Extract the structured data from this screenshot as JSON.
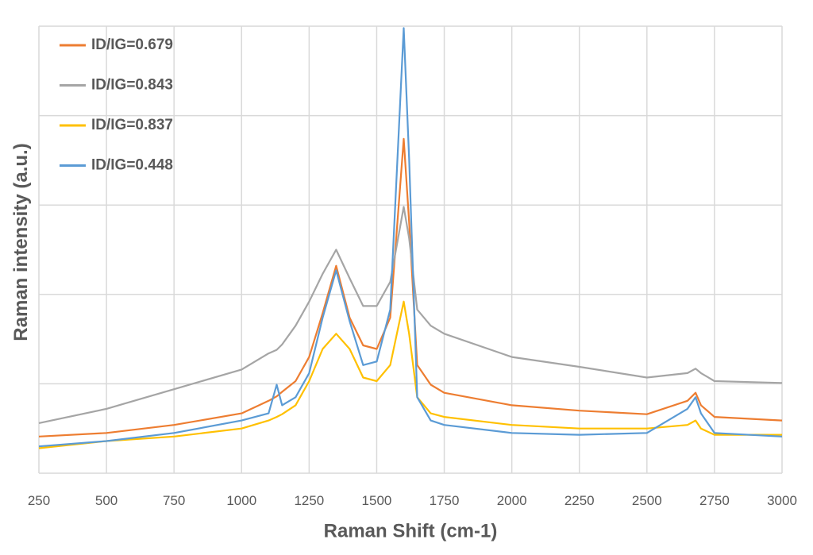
{
  "chart_data": {
    "type": "line",
    "x_label": "Raman Shift (cm-1)",
    "y_label": "Raman intensity (a.u.)",
    "x": [
      250,
      500,
      750,
      1000,
      1100,
      1130,
      1150,
      1200,
      1250,
      1300,
      1350,
      1400,
      1450,
      1500,
      1550,
      1600,
      1620,
      1650,
      1700,
      1750,
      2000,
      2250,
      2500,
      2650,
      2680,
      2700,
      2750,
      3000
    ],
    "series": [
      {
        "name": "ID/IG=0.679",
        "color": "#ed7d31",
        "values": [
          0.41,
          0.45,
          0.54,
          0.67,
          0.81,
          0.86,
          0.91,
          1.03,
          1.3,
          1.79,
          2.32,
          1.74,
          1.43,
          1.39,
          1.74,
          3.74,
          2.81,
          1.21,
          0.99,
          0.9,
          0.76,
          0.7,
          0.66,
          0.81,
          0.9,
          0.76,
          0.63,
          0.59
        ]
      },
      {
        "name": "ID/IG=0.843",
        "color": "#a5a5a5",
        "values": [
          0.56,
          0.72,
          0.94,
          1.16,
          1.34,
          1.38,
          1.44,
          1.65,
          1.92,
          2.23,
          2.5,
          2.18,
          1.87,
          1.87,
          2.14,
          2.98,
          2.63,
          1.83,
          1.65,
          1.56,
          1.3,
          1.19,
          1.07,
          1.12,
          1.17,
          1.12,
          1.03,
          1.01
        ]
      },
      {
        "name": "ID/IG=0.837",
        "color": "#ffc000",
        "values": [
          0.28,
          0.36,
          0.41,
          0.5,
          0.59,
          0.63,
          0.66,
          0.76,
          1.03,
          1.39,
          1.56,
          1.39,
          1.07,
          1.03,
          1.21,
          1.92,
          1.56,
          0.85,
          0.67,
          0.63,
          0.54,
          0.5,
          0.5,
          0.54,
          0.59,
          0.5,
          0.43,
          0.43
        ]
      },
      {
        "name": "ID/IG=0.448",
        "color": "#5b9bd5",
        "values": [
          0.3,
          0.36,
          0.45,
          0.59,
          0.67,
          0.99,
          0.76,
          0.85,
          1.12,
          1.74,
          2.27,
          1.7,
          1.21,
          1.25,
          1.83,
          4.98,
          3.52,
          0.85,
          0.59,
          0.54,
          0.45,
          0.43,
          0.45,
          0.72,
          0.85,
          0.67,
          0.45,
          0.41
        ]
      }
    ],
    "xlim": [
      250,
      3000
    ],
    "xticks": [
      250,
      500,
      750,
      1000,
      1250,
      1500,
      1750,
      2000,
      2250,
      2500,
      2750,
      3000
    ],
    "ylim": [
      0,
      5
    ],
    "yticks": [
      0,
      1,
      2,
      3,
      4,
      5
    ],
    "ytick_labels": false,
    "grid": true,
    "legend": "upper-left"
  }
}
